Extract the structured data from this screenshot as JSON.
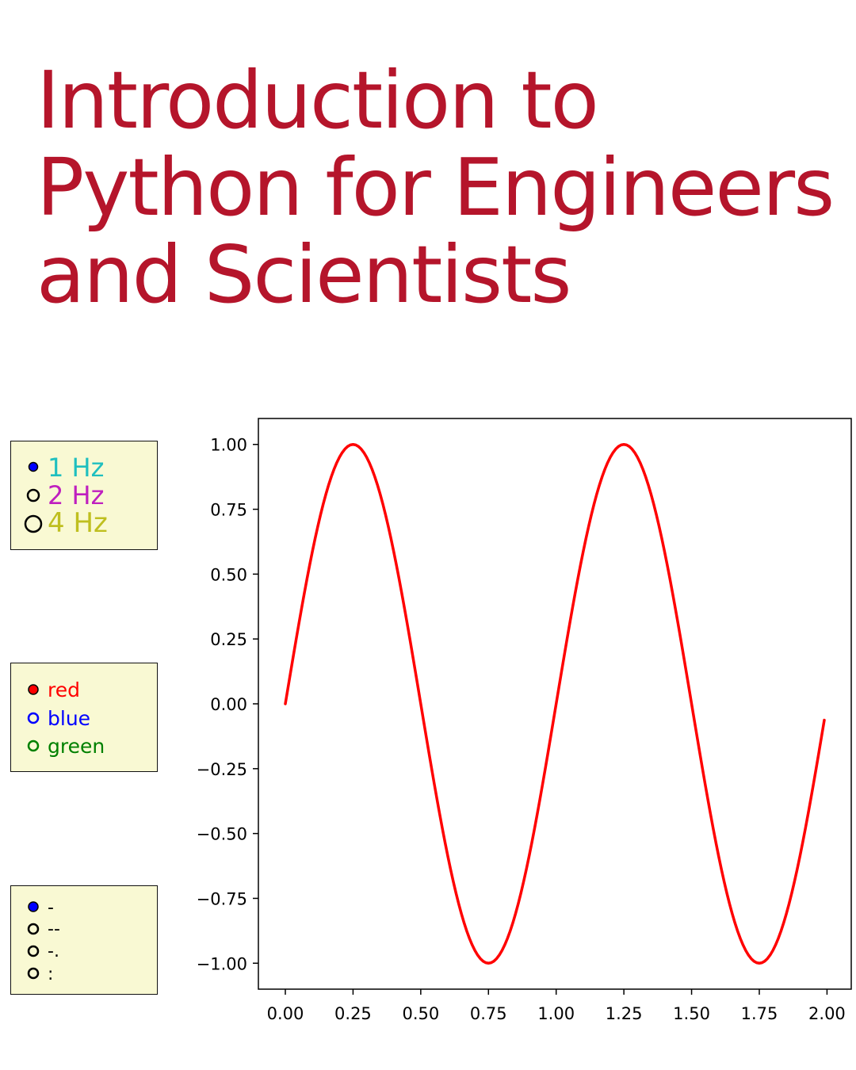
{
  "title_lines": [
    "Introduction to",
    "Python for Engineers",
    "and Scientists"
  ],
  "colors": {
    "title": "#b5152b",
    "panel_bg": "#f9f9d3",
    "curve": "#ff0000"
  },
  "radio_groups": [
    {
      "name": "frequency",
      "selected": 0,
      "options": [
        {
          "label": "1 Hz",
          "color": "#1fbfbf"
        },
        {
          "label": "2 Hz",
          "color": "#bf1fbf"
        },
        {
          "label": "4 Hz",
          "color": "#bfbf1f"
        }
      ]
    },
    {
      "name": "color",
      "selected": 0,
      "options": [
        {
          "label": "red",
          "color": "#ff0000"
        },
        {
          "label": "blue",
          "color": "#0000ff"
        },
        {
          "label": "green",
          "color": "#008000"
        }
      ]
    },
    {
      "name": "linestyle",
      "selected": 0,
      "options": [
        {
          "label": "-",
          "color": "#000000"
        },
        {
          "label": "--",
          "color": "#000000"
        },
        {
          "label": "-.",
          "color": "#000000"
        },
        {
          "label": ":",
          "color": "#000000"
        }
      ]
    }
  ],
  "chart_data": {
    "type": "line",
    "function": "sin(2*pi*f*t)",
    "frequency_hz": 1,
    "x_range": [
      0,
      1.99
    ],
    "step": 0.01,
    "xlim": [
      -0.0995,
      2.0895
    ],
    "ylim": [
      -1.1,
      1.1
    ],
    "xticks": [
      0.0,
      0.25,
      0.5,
      0.75,
      1.0,
      1.25,
      1.5,
      1.75,
      2.0
    ],
    "yticks": [
      1.0,
      0.75,
      0.5,
      0.25,
      0.0,
      -0.25,
      -0.5,
      -0.75,
      -1.0
    ],
    "xtick_labels": [
      "0.00",
      "0.25",
      "0.50",
      "0.75",
      "1.00",
      "1.25",
      "1.50",
      "1.75",
      "2.00"
    ],
    "ytick_labels": [
      "1.00",
      "0.75",
      "0.50",
      "0.25",
      "0.00",
      "−0.25",
      "−0.50",
      "−0.75",
      "−1.00"
    ],
    "line_color": "#ff0000",
    "grid": false
  }
}
